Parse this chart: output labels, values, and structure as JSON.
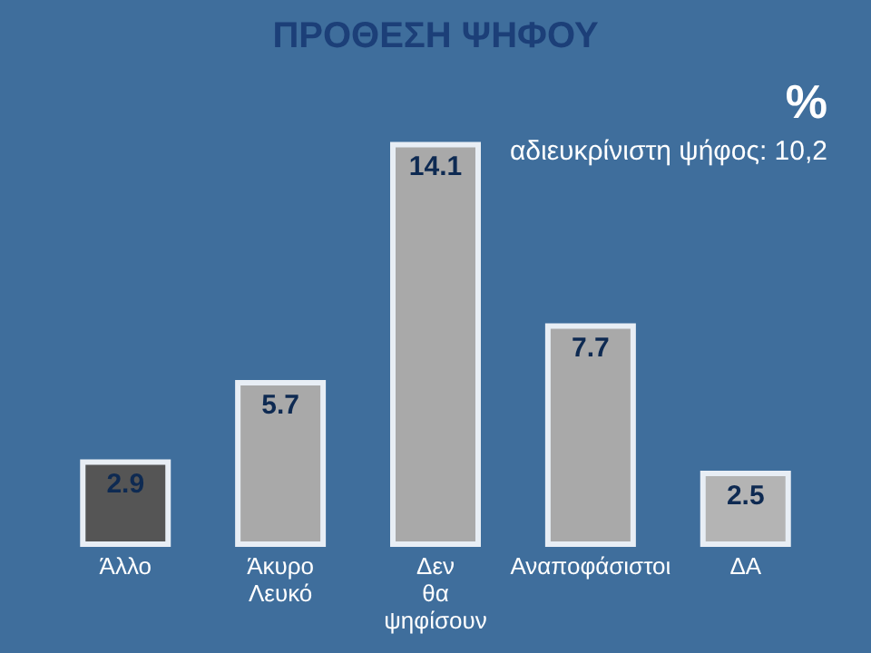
{
  "chart_data": {
    "type": "bar",
    "title": "ΠΡΟΘΕΣΗ ΨΗΦΟΥ",
    "categories": [
      "Άλλο",
      "Άκυρο Λευκό",
      "Δεν θα ψηφίσουν",
      "Αναποφάσιστοι",
      "ΔΑ"
    ],
    "values": [
      2.9,
      5.7,
      14.1,
      7.7,
      2.5
    ],
    "colors": [
      "#555555",
      "#a9a9a9",
      "#a9a9a9",
      "#a9a9a9",
      "#b4b4b4"
    ],
    "data_labels": true,
    "annotations": [
      "%",
      "αδιευκρίνιστη ψήφος: 10,2"
    ]
  }
}
